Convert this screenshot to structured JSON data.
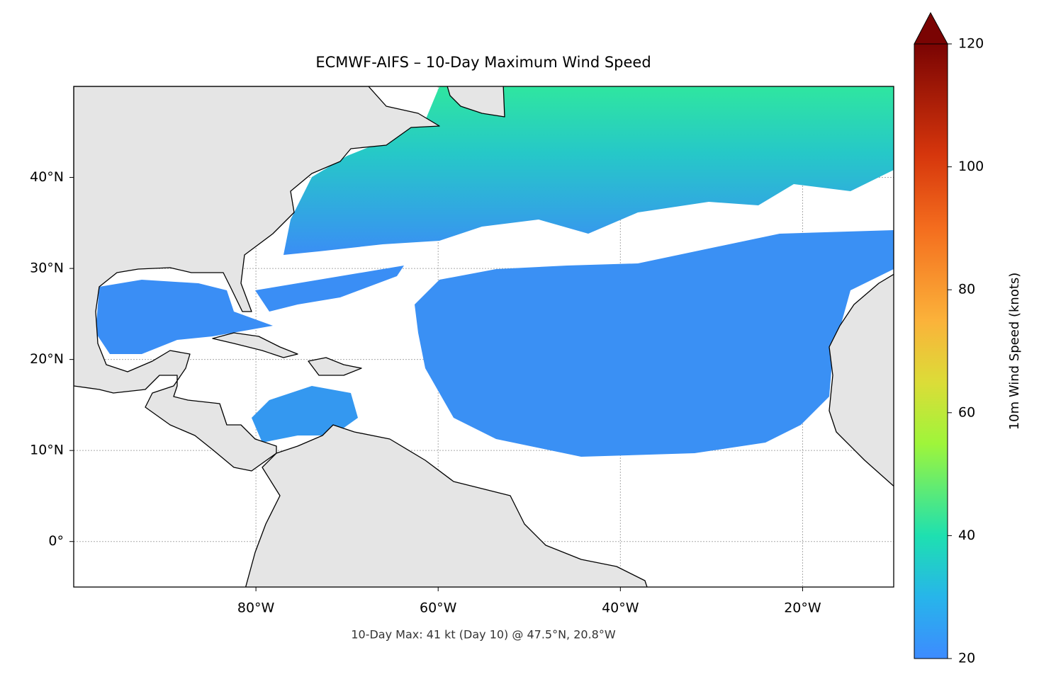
{
  "chart_data": {
    "type": "map",
    "title": "ECMWF-AIFS – 10-Day Maximum Wind Speed",
    "annotation": "10-Day Max: 41 kt (Day 10) @ 47.5°N, 20.8°W",
    "xlim": [
      -100,
      -10
    ],
    "ylim": [
      -5,
      50
    ],
    "xticks": [
      {
        "value": -80,
        "label": "80°W"
      },
      {
        "value": -60,
        "label": "60°W"
      },
      {
        "value": -40,
        "label": "40°W"
      },
      {
        "value": -20,
        "label": "20°W"
      }
    ],
    "yticks": [
      {
        "value": 40,
        "label": "40°N"
      },
      {
        "value": 30,
        "label": "30°N"
      },
      {
        "value": 20,
        "label": "20°N"
      },
      {
        "value": 10,
        "label": "10°N"
      },
      {
        "value": 0,
        "label": "0°"
      }
    ],
    "grid": true,
    "colorbar": {
      "label": "10m Wind Speed (knots)",
      "lim": [
        20,
        120
      ],
      "ticks": [
        20,
        40,
        60,
        80,
        100,
        120
      ]
    }
  }
}
